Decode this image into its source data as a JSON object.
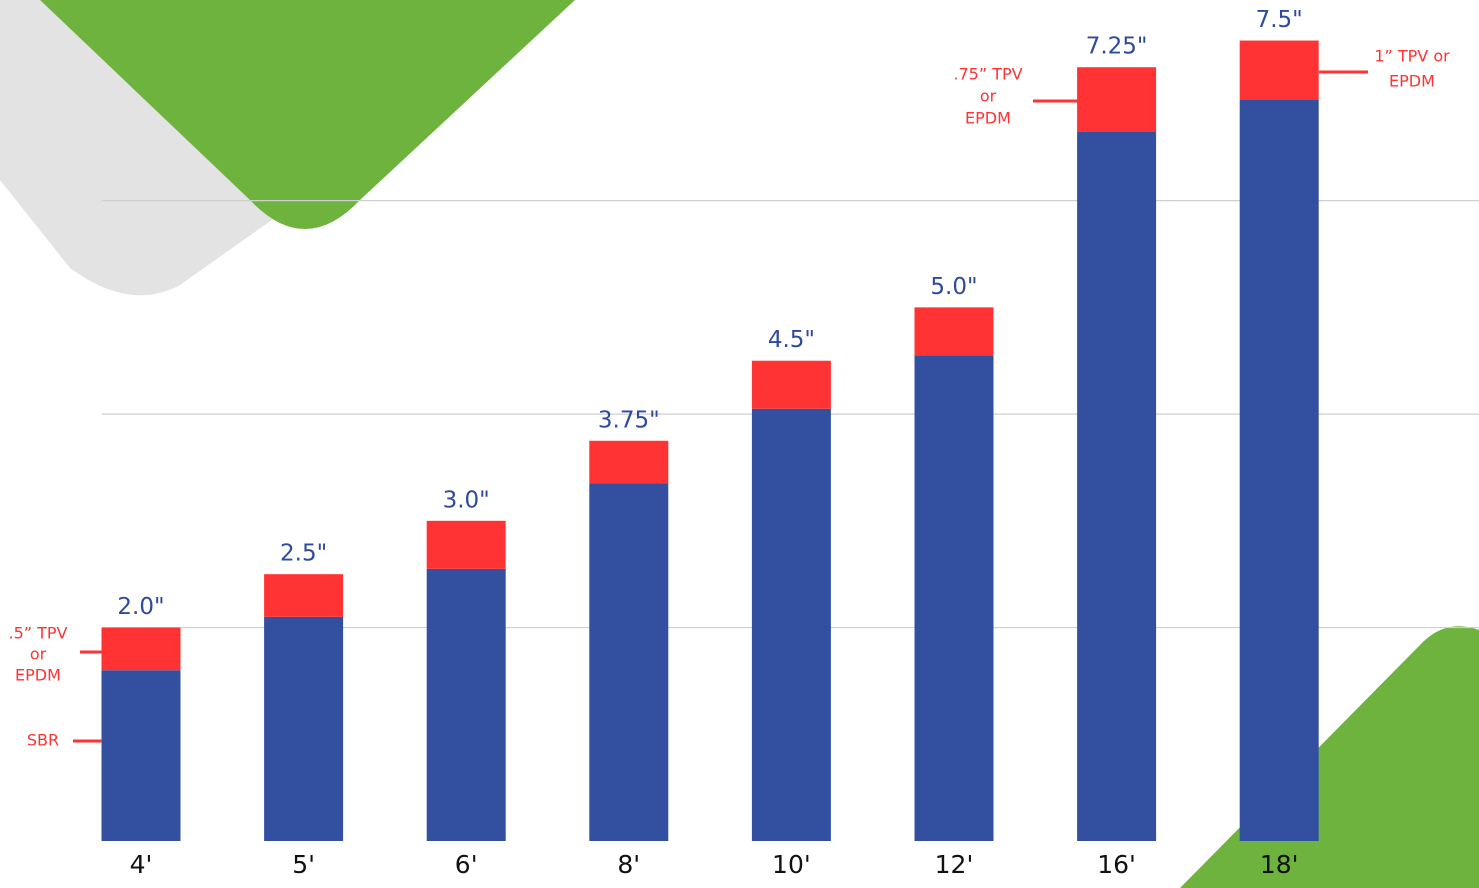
{
  "chart_data": {
    "type": "stacked_bar",
    "categories": [
      "4'",
      "5'",
      "6'",
      "8'",
      "10'",
      "12'",
      "16'",
      "18'"
    ],
    "series": [
      {
        "color": "#3350a0",
        "values": [
          1.6,
          2.1,
          2.55,
          3.35,
          4.05,
          4.55,
          6.65,
          6.95
        ]
      },
      {
        "color": "#ff3333",
        "values": [
          0.4,
          0.4,
          0.45,
          0.4,
          0.45,
          0.45,
          0.6,
          0.55
        ]
      }
    ],
    "totals": [
      2.0,
      2.5,
      3.0,
      3.75,
      4.5,
      5.0,
      7.25,
      7.5
    ],
    "total_labels": [
      "2.0\"",
      "2.5\"",
      "3.0\"",
      "3.75\"",
      "4.5\"",
      "5.0\"",
      "7.25\"",
      "7.5\""
    ],
    "ylim": [
      0,
      7.88
    ],
    "yticks": [
      2,
      4,
      6
    ],
    "grid": true,
    "annotations": [
      {
        "text": [
          ".5” TPV",
          "or",
          "EPDM"
        ]
      },
      {
        "text": [
          "SBR"
        ]
      },
      {
        "text": [
          ".75” TPV",
          "or",
          "EPDM"
        ]
      },
      {
        "text": [
          "1” TPV or",
          "EPDM"
        ]
      }
    ]
  }
}
